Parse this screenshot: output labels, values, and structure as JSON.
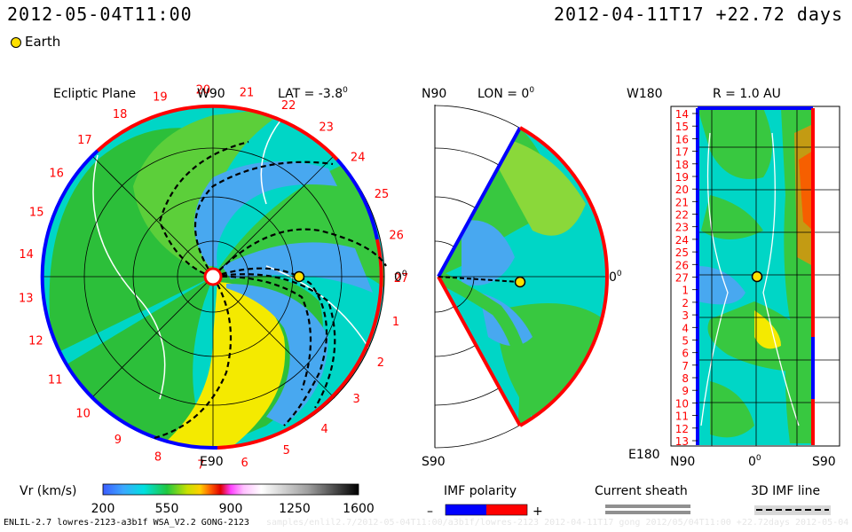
{
  "header": {
    "left_time": "2012-05-04T11:00",
    "right_time": "2012-04-11T17 +22.72 days"
  },
  "earth_legend": "Earth",
  "footer": {
    "model": "ENLIL-2.7 lowres-2123-a3b1f WSA_V2.2 GONG-2123",
    "path": "samples/enlil2.7/2012-05-04T11:00/a3b1f/lowres-2123 2012-04-11T17 gong 2012/05/04T11:00 +22.72days 2012-05-04"
  },
  "chart_data": [
    {
      "type": "heatmap",
      "panel": "ecliptic",
      "title": "Ecliptic Plane",
      "lat_label": "LAT = -3.8",
      "lat_unit": "0",
      "top_axis": "W90",
      "bottom_axis": "E90",
      "right_axis": "0",
      "right_axis_unit": "0",
      "carrington_labels": [
        "20",
        "21",
        "22",
        "23",
        "24",
        "25",
        "26",
        "27",
        "1",
        "2",
        "3",
        "4",
        "5",
        "6",
        "7",
        "8",
        "9",
        "10",
        "11",
        "12",
        "13",
        "14",
        "15",
        "16",
        "17",
        "18",
        "19"
      ],
      "earth_position": {
        "lon_deg": 0,
        "r_au": 1.0
      }
    },
    {
      "type": "heatmap",
      "panel": "meridional",
      "top_axis": "N90",
      "bottom_axis": "S90",
      "lon_label": "LON = 0",
      "lon_unit": "0",
      "right_axis": "0",
      "right_axis_unit": "0",
      "earth_position": {
        "lat_deg": 0,
        "r_au": 1.0
      }
    },
    {
      "type": "heatmap",
      "panel": "sphere",
      "title": "R = 1.0 AU",
      "top_left": "W180",
      "bottom_left": "E180",
      "bottom_axis": [
        "N90",
        "0",
        "S90"
      ],
      "bottom_axis_unit": "0",
      "y_tick_labels": [
        "14",
        "15",
        "16",
        "17",
        "18",
        "19",
        "20",
        "21",
        "22",
        "23",
        "24",
        "25",
        "26",
        "27",
        "1",
        "2",
        "3",
        "4",
        "5",
        "6",
        "7",
        "8",
        "9",
        "10",
        "11",
        "12",
        "13"
      ]
    },
    {
      "type": "colorbar",
      "label": "Vr (km/s)",
      "ticks": [
        "200",
        "550",
        "900",
        "1250",
        "1600"
      ],
      "range": [
        200,
        1600
      ]
    }
  ],
  "legends": {
    "imf_polarity": {
      "title": "IMF polarity",
      "minus": "–",
      "plus": "+",
      "neg_color": "#0000ff",
      "pos_color": "#ff0000"
    },
    "current_sheath": {
      "title": "Current sheath"
    },
    "imf_line": {
      "title": "3D IMF line"
    }
  },
  "colors": {
    "slow_wind": "#28b828",
    "bg_wind": "#00dcc8",
    "fast_wind": "#ffe600",
    "cme_low": "#3ca0f0",
    "boundary_red": "#ff0000",
    "boundary_blue": "#0000ff"
  }
}
